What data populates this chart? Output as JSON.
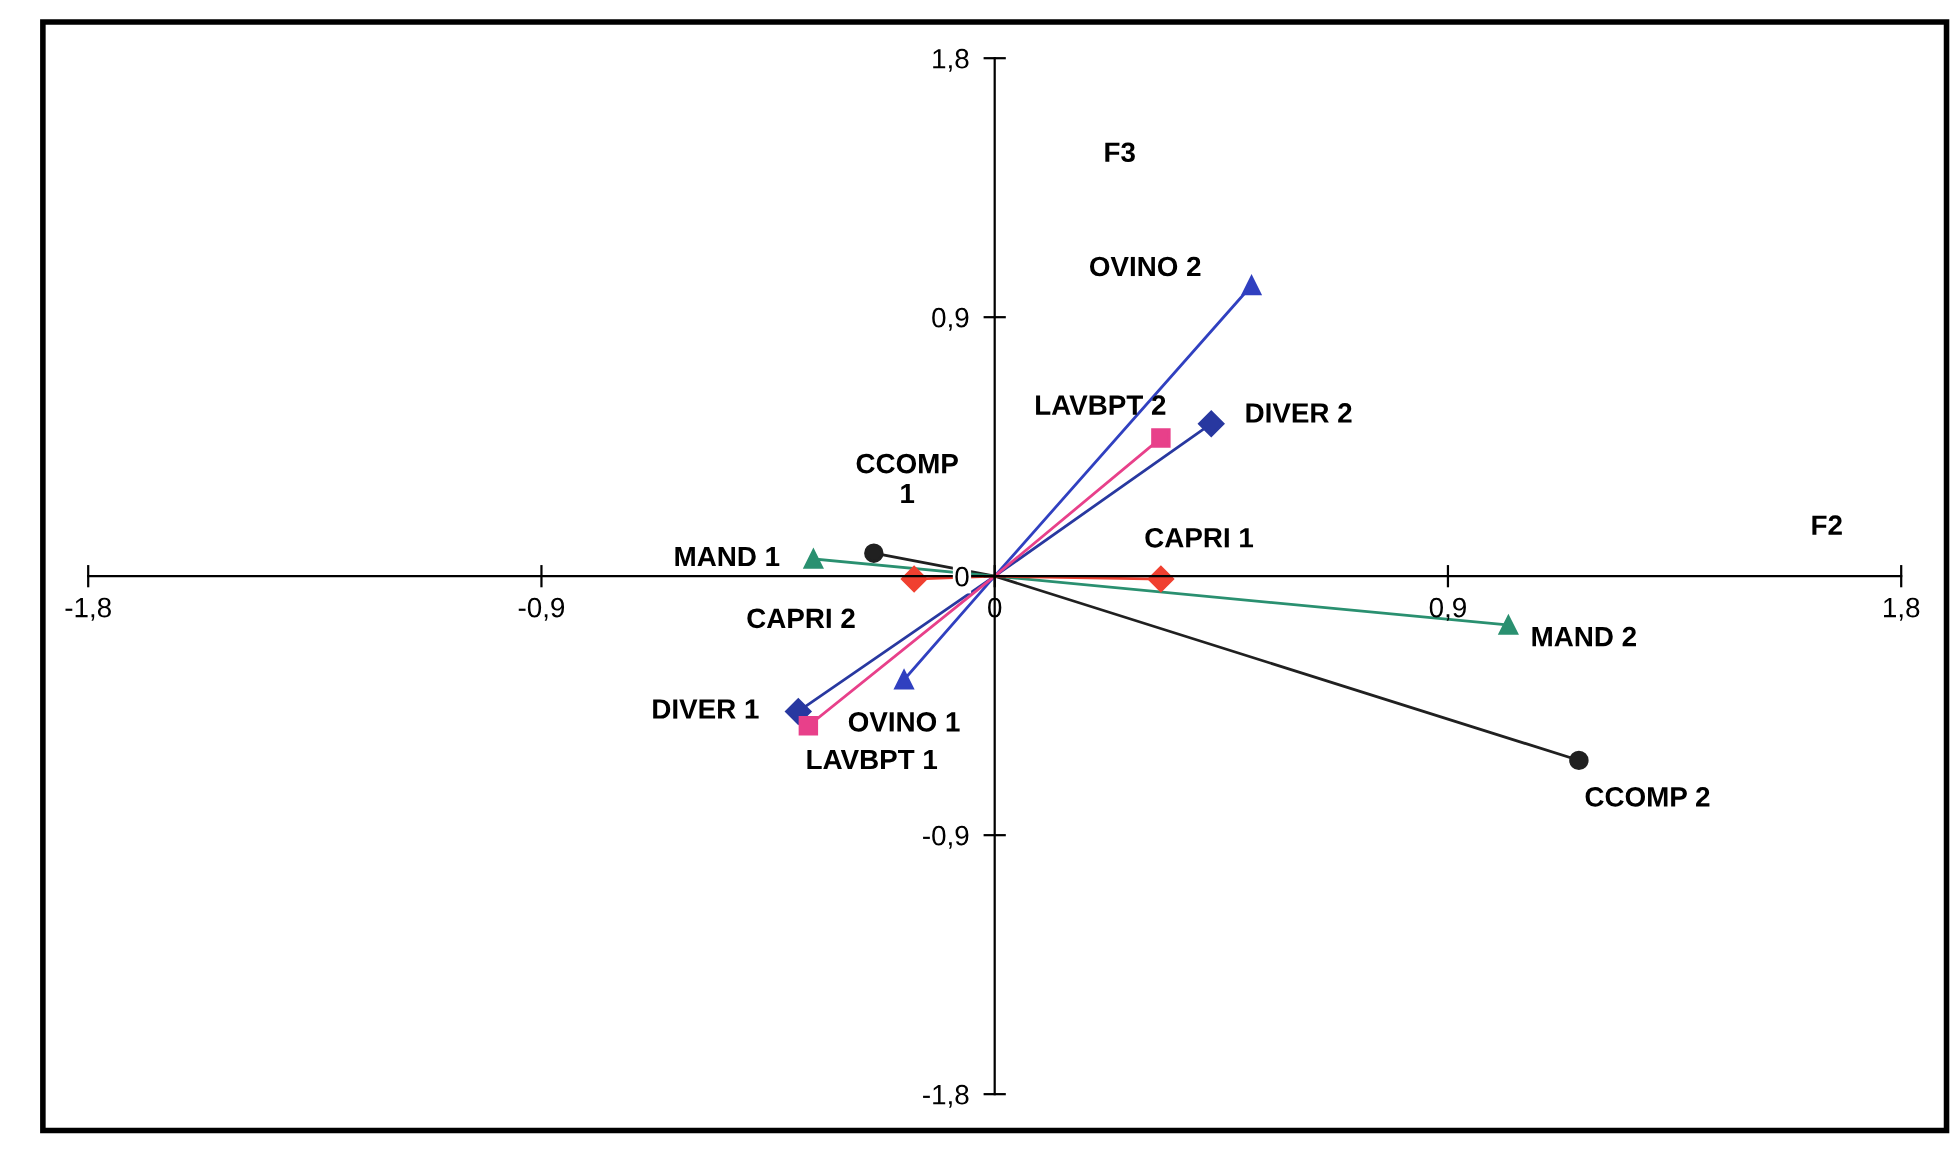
{
  "chart_data": {
    "type": "line",
    "xlabel": "F2",
    "ylabel": "F3",
    "xlim": [
      -1.8,
      1.8
    ],
    "ylim": [
      -1.8,
      1.8
    ],
    "xticks": [
      {
        "value": -1.8,
        "label": "-1,8"
      },
      {
        "value": -0.9,
        "label": "-0,9"
      },
      0,
      {
        "value": 0.9,
        "label": "0,9"
      },
      {
        "value": 1.8,
        "label": "1,8"
      }
    ],
    "yticks": [
      {
        "value": -1.8,
        "label": "-1,8"
      },
      {
        "value": -0.9,
        "label": "-0,9"
      },
      0,
      {
        "value": 0.9,
        "label": "0,9"
      },
      {
        "value": 1.8,
        "label": "1,8"
      }
    ],
    "grid": false,
    "legend": false,
    "series": [
      {
        "color": "#3040c0",
        "marker": "triangle",
        "x": [
          -0.18,
          0,
          0.51
        ],
        "values": [
          -0.36,
          0,
          1.01
        ]
      },
      {
        "color": "#2838a0",
        "marker": "diamond",
        "x": [
          -0.39,
          0,
          0.43
        ],
        "values": [
          -0.47,
          0,
          0.53
        ]
      },
      {
        "color": "#e8408a",
        "marker": "square",
        "x": [
          -0.37,
          0,
          0.33
        ],
        "values": [
          -0.52,
          0,
          0.48
        ]
      },
      {
        "color": "#202020",
        "marker": "circle",
        "x": [
          -0.24,
          0,
          1.16
        ],
        "values": [
          0.08,
          0,
          -0.64
        ]
      },
      {
        "color": "#2a9070",
        "marker": "triangle",
        "x": [
          -0.36,
          0,
          1.02
        ],
        "values": [
          0.06,
          0,
          -0.17
        ]
      },
      {
        "color": "#f04030",
        "marker": "diamond",
        "x": [
          -0.16,
          0,
          0.33
        ],
        "values": [
          -0.01,
          0,
          -0.01
        ]
      }
    ],
    "annotations": [
      {
        "text": "OVINO 1",
        "x": -0.18,
        "y": -0.36
      },
      {
        "text": "OVINO 2",
        "x": 0.51,
        "y": 1.01
      },
      {
        "text": "DIVER 1",
        "x": -0.39,
        "y": -0.47
      },
      {
        "text": "DIVER 2",
        "x": 0.43,
        "y": 0.53
      },
      {
        "text": "LAVBPT 1",
        "x": -0.37,
        "y": -0.52
      },
      {
        "text": "LAVBPT 2",
        "x": 0.33,
        "y": 0.48
      },
      {
        "text": "CCOMP\n1",
        "x": -0.24,
        "y": 0.08
      },
      {
        "text": "CCOMP 2",
        "x": 1.16,
        "y": -0.64
      },
      {
        "text": "MAND 1",
        "x": -0.36,
        "y": 0.06
      },
      {
        "text": "MAND 2",
        "x": 1.02,
        "y": -0.17
      },
      {
        "text": "CAPRI 2",
        "x": -0.16,
        "y": -0.01
      },
      {
        "text": "CAPRI 1",
        "x": 0.33,
        "y": -0.01
      }
    ]
  }
}
